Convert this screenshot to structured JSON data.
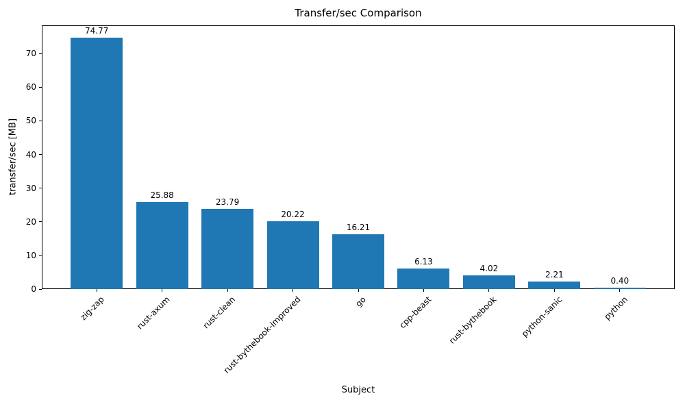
{
  "chart_data": {
    "type": "bar",
    "title": "Transfer/sec Comparison",
    "xlabel": "Subject",
    "ylabel": "transfer/sec [MB]",
    "categories": [
      "zig-zap",
      "rust-axum",
      "rust-clean",
      "rust-bythebook-improved",
      "go",
      "cpp-beast",
      "rust-bythebook",
      "python-sanic",
      "python"
    ],
    "values": [
      74.77,
      25.88,
      23.79,
      20.22,
      16.21,
      6.13,
      4.02,
      2.21,
      0.4
    ],
    "value_labels": [
      "74.77",
      "25.88",
      "23.79",
      "20.22",
      "16.21",
      "6.13",
      "4.02",
      "2.21",
      "0.40"
    ],
    "yticks": [
      0,
      10,
      20,
      30,
      40,
      50,
      60,
      70
    ],
    "ylim": [
      0,
      78.4
    ],
    "xtick_rotation_deg": 45,
    "grid": false,
    "legend": null,
    "bar_color": "#1f77b4",
    "axis_color": "#000000",
    "background_color": "#ffffff"
  }
}
